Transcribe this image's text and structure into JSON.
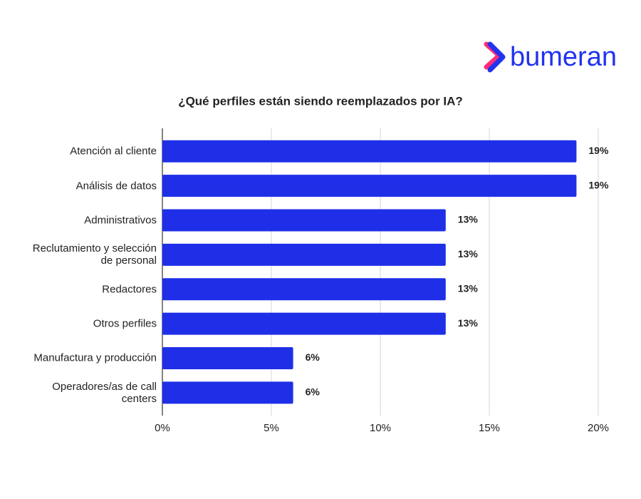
{
  "logo": {
    "text": "bumeran"
  },
  "chart_data": {
    "type": "hbar",
    "title": "¿Qué perfiles están siendo reemplazados por IA?",
    "categories": [
      "Atención al cliente",
      "Análisis de datos",
      "Administrativos",
      "Reclutamiento y selección de personal",
      "Redactores",
      "Otros perfiles",
      "Manufactura y producción",
      "Operadores/as de call centers"
    ],
    "values": [
      19,
      19,
      13,
      13,
      13,
      13,
      6,
      6
    ],
    "value_labels": [
      "19%",
      "19%",
      "13%",
      "13%",
      "13%",
      "13%",
      "6%",
      "6%"
    ],
    "color": "#1f2fe8",
    "xlim": [
      0,
      20
    ],
    "xticks": [
      {
        "value": 0,
        "label": "0%"
      },
      {
        "value": 5,
        "label": "5%"
      },
      {
        "value": 10,
        "label": "10%"
      },
      {
        "value": 15,
        "label": "15%"
      },
      {
        "value": 20,
        "label": "20%"
      }
    ],
    "grid": true
  }
}
